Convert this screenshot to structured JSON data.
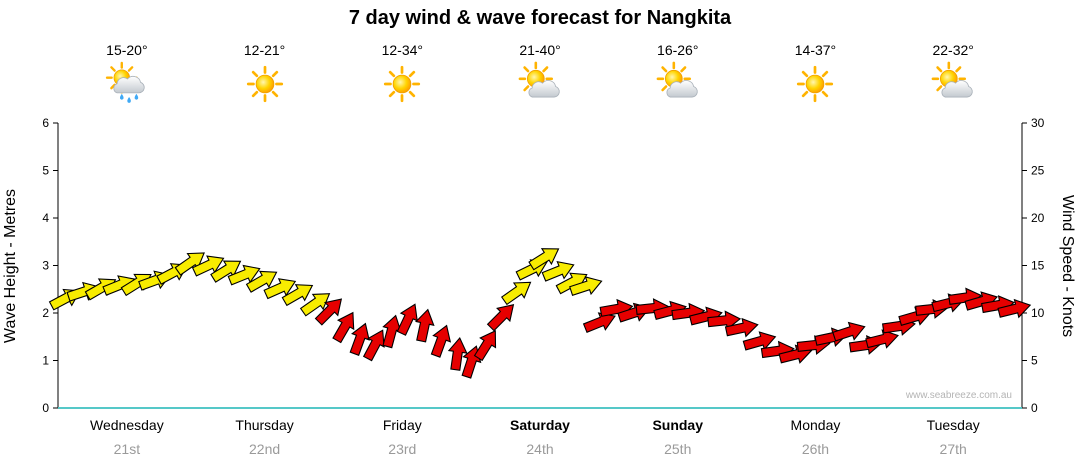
{
  "title": "7 day wind & wave forecast for Nangkita",
  "watermark": "www.seabreeze.com.au",
  "axes": {
    "left_label": "Wave Height - Metres",
    "right_label": "Wind Speed - Knots"
  },
  "days": [
    {
      "name": "Wednesday",
      "date": "21st",
      "temp": "15-20°",
      "icon": "sun-rain",
      "bold": false
    },
    {
      "name": "Thursday",
      "date": "22nd",
      "temp": "12-21°",
      "icon": "sun",
      "bold": false
    },
    {
      "name": "Friday",
      "date": "23rd",
      "temp": "12-34°",
      "icon": "sun",
      "bold": false
    },
    {
      "name": "Saturday",
      "date": "24th",
      "temp": "21-40°",
      "icon": "sun-cloud",
      "bold": true
    },
    {
      "name": "Sunday",
      "date": "25th",
      "temp": "16-26°",
      "icon": "sun-cloud",
      "bold": true
    },
    {
      "name": "Monday",
      "date": "26th",
      "temp": "14-37°",
      "icon": "sun",
      "bold": false
    },
    {
      "name": "Tuesday",
      "date": "27th",
      "temp": "22-32°",
      "icon": "sun-cloud",
      "bold": false
    }
  ],
  "chart_data": {
    "type": "scatter",
    "subtype": "wind-direction-arrows",
    "title": "7 day wind & wave forecast for Nangkita",
    "xlabel": "",
    "ylabel_left": "Wave Height - Metres",
    "ylabel_right": "Wind Speed - Knots",
    "ylim_left": [
      0,
      6
    ],
    "ytick_step_left": 1,
    "ylim_right": [
      0,
      30
    ],
    "ytick_step_right": 5,
    "grid": false,
    "x_day_labels": [
      "Wednesday 21st",
      "Thursday 22nd",
      "Friday 23rd",
      "Saturday 24th",
      "Sunday 25th",
      "Monday 26th",
      "Tuesday 27th"
    ],
    "axis_color_x": "#55c8c8",
    "colors": {
      "y": "#f8ec00",
      "r": "#e60000"
    },
    "points_format": "[x_days_from_wed_0_to_7, wind_speed_knots (metres = knots/5), color_key, arrow_rotation_deg]",
    "points": [
      [
        0.05,
        11.5,
        "y",
        -28
      ],
      [
        0.18,
        12.2,
        "y",
        -18
      ],
      [
        0.31,
        12.6,
        "y",
        -30
      ],
      [
        0.44,
        12.9,
        "y",
        -22
      ],
      [
        0.57,
        13.1,
        "y",
        -32
      ],
      [
        0.7,
        13.4,
        "y",
        -20
      ],
      [
        0.83,
        14.2,
        "y",
        -28
      ],
      [
        0.96,
        15.3,
        "y",
        -35
      ],
      [
        1.09,
        15.0,
        "y",
        -25
      ],
      [
        1.22,
        14.5,
        "y",
        -32
      ],
      [
        1.35,
        14.0,
        "y",
        -22
      ],
      [
        1.48,
        13.4,
        "y",
        -30
      ],
      [
        1.61,
        12.6,
        "y",
        -24
      ],
      [
        1.74,
        12.0,
        "y",
        -30
      ],
      [
        1.87,
        11.0,
        "y",
        -35
      ],
      [
        1.97,
        10.2,
        "r",
        -45
      ],
      [
        2.08,
        8.5,
        "r",
        -60
      ],
      [
        2.19,
        7.2,
        "r",
        -70
      ],
      [
        2.3,
        6.6,
        "r",
        -62
      ],
      [
        2.42,
        8.0,
        "r",
        -75
      ],
      [
        2.54,
        9.3,
        "r",
        -65
      ],
      [
        2.66,
        8.6,
        "r",
        -78
      ],
      [
        2.78,
        7.0,
        "r",
        -70
      ],
      [
        2.9,
        5.6,
        "r",
        -82
      ],
      [
        3.0,
        4.8,
        "r",
        -72
      ],
      [
        3.11,
        6.6,
        "r",
        -58
      ],
      [
        3.22,
        9.6,
        "r",
        -45
      ],
      [
        3.33,
        12.2,
        "y",
        -35
      ],
      [
        3.44,
        14.6,
        "y",
        -26
      ],
      [
        3.53,
        15.8,
        "y",
        -32
      ],
      [
        3.63,
        14.4,
        "y",
        -22
      ],
      [
        3.73,
        13.2,
        "y",
        -28
      ],
      [
        3.83,
        12.8,
        "y",
        -18
      ],
      [
        3.93,
        9.0,
        "r",
        -22
      ],
      [
        4.05,
        10.4,
        "r",
        -10
      ],
      [
        4.18,
        10.0,
        "r",
        -18
      ],
      [
        4.31,
        10.5,
        "r",
        -6
      ],
      [
        4.44,
        10.2,
        "r",
        -15
      ],
      [
        4.57,
        10.0,
        "r",
        -8
      ],
      [
        4.7,
        9.6,
        "r",
        -14
      ],
      [
        4.83,
        9.2,
        "r",
        -6
      ],
      [
        4.96,
        8.4,
        "r",
        -12
      ],
      [
        5.09,
        7.0,
        "r",
        -16
      ],
      [
        5.22,
        6.0,
        "r",
        -8
      ],
      [
        5.35,
        5.6,
        "r",
        -14
      ],
      [
        5.48,
        6.6,
        "r",
        -6
      ],
      [
        5.61,
        7.4,
        "r",
        -12
      ],
      [
        5.74,
        8.0,
        "r",
        -18
      ],
      [
        5.86,
        6.6,
        "r",
        -8
      ],
      [
        5.98,
        7.2,
        "r",
        -14
      ],
      [
        6.1,
        8.6,
        "r",
        -8
      ],
      [
        6.22,
        9.6,
        "r",
        -16
      ],
      [
        6.34,
        10.4,
        "r",
        -6
      ],
      [
        6.46,
        11.0,
        "r",
        -14
      ],
      [
        6.58,
        11.6,
        "r",
        -8
      ],
      [
        6.7,
        11.2,
        "r",
        -16
      ],
      [
        6.82,
        10.8,
        "r",
        -10
      ],
      [
        6.94,
        10.4,
        "r",
        -14
      ]
    ]
  }
}
